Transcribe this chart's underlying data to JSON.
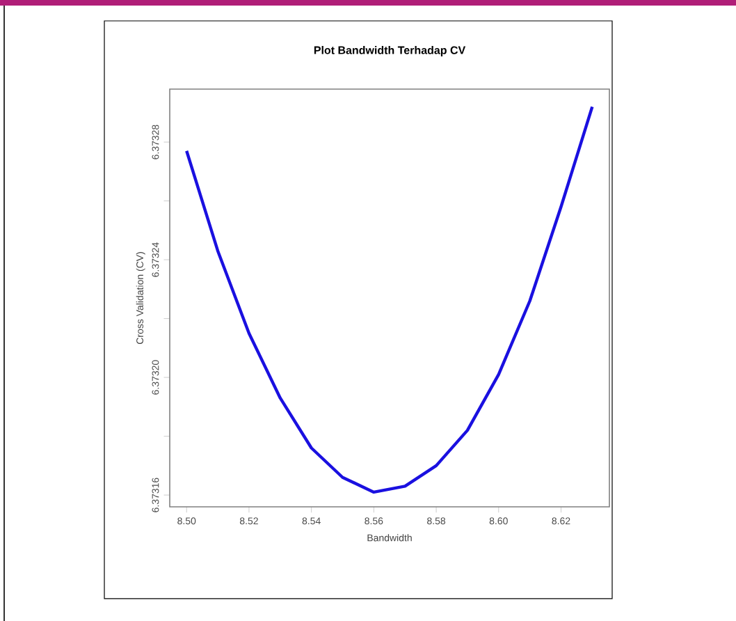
{
  "chart_data": {
    "type": "line",
    "title": "Plot Bandwidth Terhadap CV",
    "xlabel": "Bandwidth",
    "ylabel": "Cross Validation (CV)",
    "x": [
      8.5,
      8.51,
      8.52,
      8.53,
      8.54,
      8.55,
      8.56,
      8.57,
      8.58,
      8.59,
      8.6,
      8.61,
      8.62,
      8.63
    ],
    "series": [
      {
        "color": "#1a10e0",
        "values": [
          6.373277,
          6.373243,
          6.373215,
          6.373193,
          6.373176,
          6.373166,
          6.373161,
          6.373163,
          6.37317,
          6.373182,
          6.373201,
          6.373226,
          6.373258,
          6.373292
        ]
      }
    ],
    "xlim": [
      8.4946,
      8.6355
    ],
    "ylim": [
      6.373156,
      6.373298
    ],
    "xticks": [
      {
        "value": 8.5,
        "label": "8.50"
      },
      {
        "value": 8.52,
        "label": "8.52"
      },
      {
        "value": 8.54,
        "label": "8.54"
      },
      {
        "value": 8.56,
        "label": "8.56"
      },
      {
        "value": 8.58,
        "label": "8.58"
      },
      {
        "value": 8.6,
        "label": "8.60"
      },
      {
        "value": 8.62,
        "label": "8.62"
      }
    ],
    "yticks": [
      {
        "value": 6.37316,
        "label": "6.37316"
      },
      {
        "value": 6.37318,
        "label": null
      },
      {
        "value": 6.3732,
        "label": "6.37320"
      },
      {
        "value": 6.37322,
        "label": null
      },
      {
        "value": 6.37324,
        "label": "6.37324"
      },
      {
        "value": 6.37326,
        "label": null
      },
      {
        "value": 6.37328,
        "label": "6.37328"
      }
    ],
    "grid": false,
    "marker": "none",
    "line_style": "solid"
  }
}
